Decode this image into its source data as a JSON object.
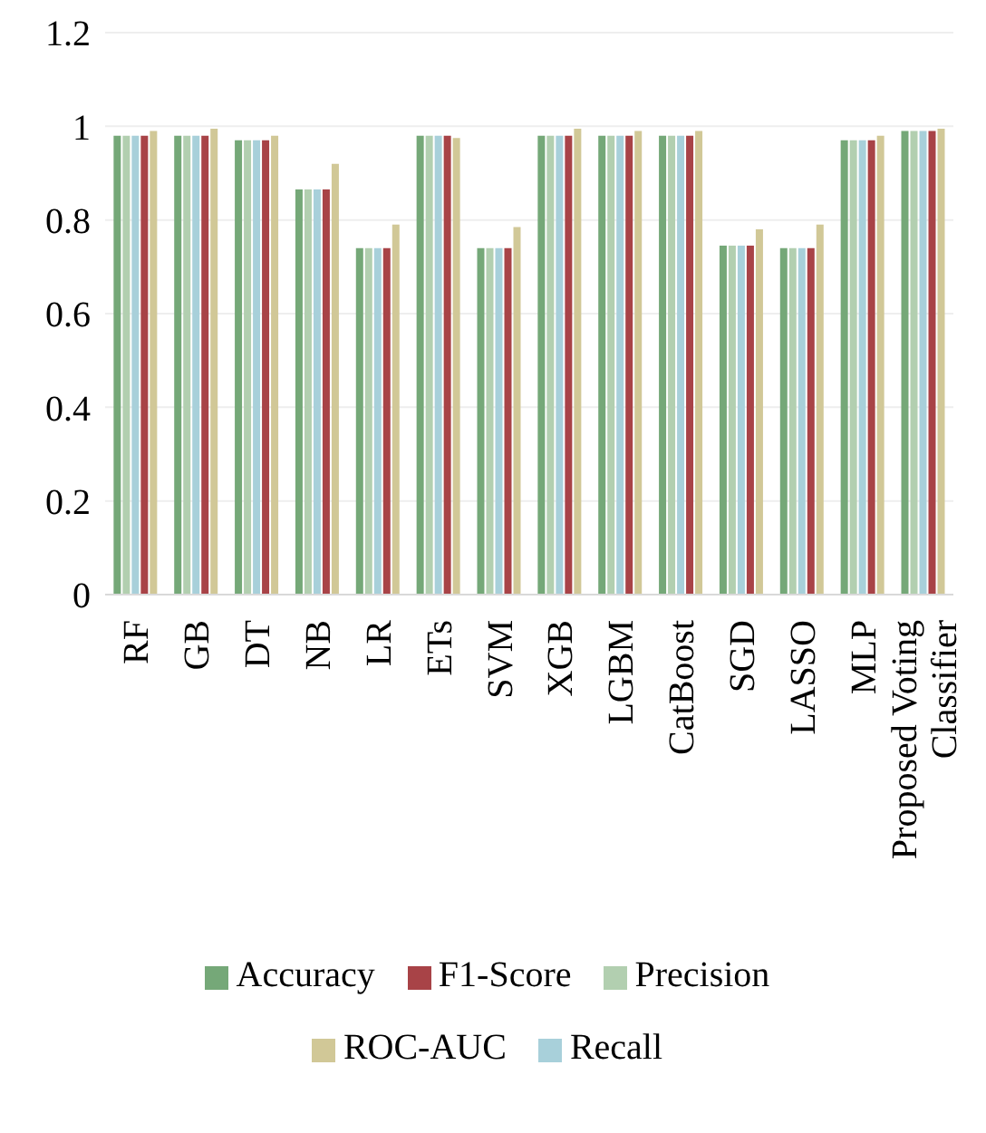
{
  "chart_data": {
    "type": "bar",
    "categories": [
      "RF",
      "GB",
      "DT",
      "NB",
      "LR",
      "ETs",
      "SVM",
      "XGB",
      "LGBM",
      "CatBoost",
      "SGD",
      "LASSO",
      "MLP",
      "Proposed Voting Classifier"
    ],
    "series": [
      {
        "name": "Accuracy",
        "color": "#75a878",
        "values": [
          0.98,
          0.98,
          0.97,
          0.865,
          0.74,
          0.98,
          0.74,
          0.98,
          0.98,
          0.98,
          0.745,
          0.74,
          0.97,
          0.99
        ]
      },
      {
        "name": "Precision",
        "color": "#b2cfb0",
        "values": [
          0.98,
          0.98,
          0.97,
          0.865,
          0.74,
          0.98,
          0.74,
          0.98,
          0.98,
          0.98,
          0.745,
          0.74,
          0.97,
          0.99
        ]
      },
      {
        "name": "Recall",
        "color": "#a8d0da",
        "values": [
          0.98,
          0.98,
          0.97,
          0.865,
          0.74,
          0.98,
          0.74,
          0.98,
          0.98,
          0.98,
          0.745,
          0.74,
          0.97,
          0.99
        ]
      },
      {
        "name": "F1-Score",
        "color": "#a84347",
        "values": [
          0.98,
          0.98,
          0.97,
          0.865,
          0.74,
          0.98,
          0.74,
          0.98,
          0.98,
          0.98,
          0.745,
          0.74,
          0.97,
          0.99
        ]
      },
      {
        "name": "ROC-AUC",
        "color": "#d1c897",
        "values": [
          0.99,
          0.995,
          0.98,
          0.92,
          0.79,
          0.975,
          0.785,
          0.995,
          0.99,
          0.99,
          0.78,
          0.79,
          0.98,
          0.995
        ]
      }
    ],
    "ylim": [
      0,
      1.2
    ],
    "yticks": [
      0,
      0.2,
      0.4,
      0.6,
      0.8,
      1,
      1.2
    ],
    "grid": "y",
    "legend": "bottom"
  }
}
